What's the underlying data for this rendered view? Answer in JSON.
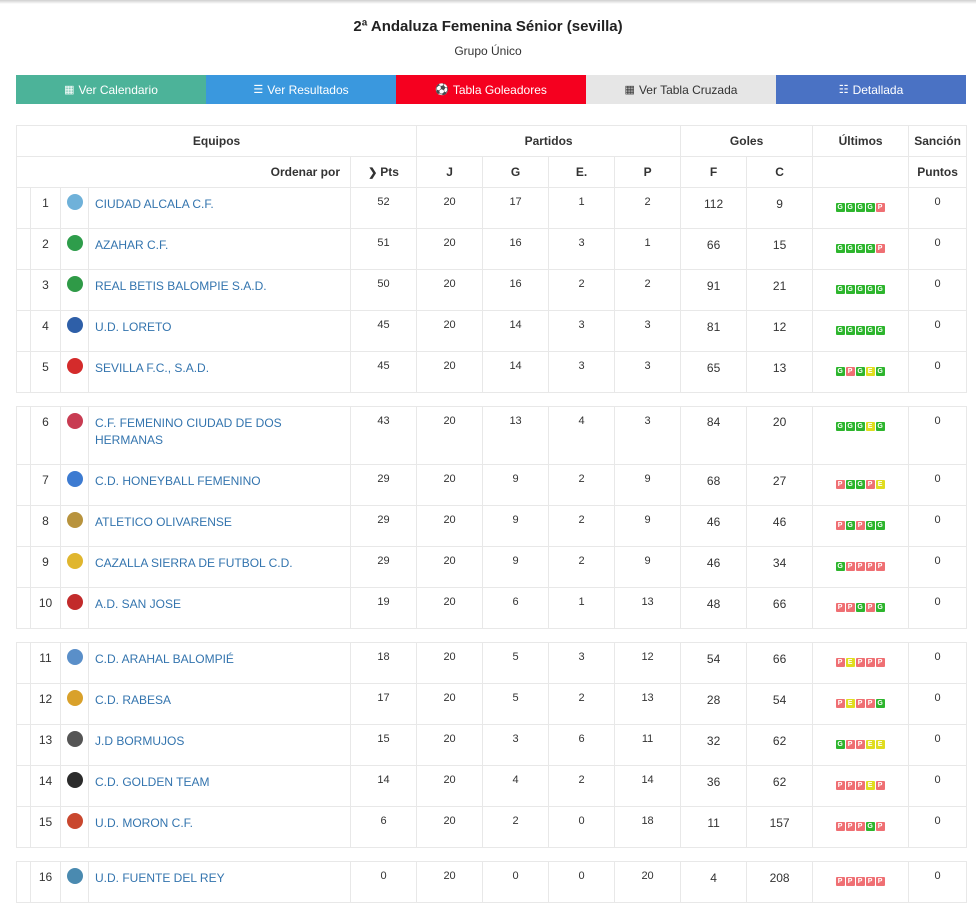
{
  "header": {
    "title": "2ª Andaluza Femenina Sénior (sevilla)",
    "subtitle": "Grupo Único"
  },
  "buttons": [
    {
      "label": "Ver Calendario",
      "icon": "calendar-icon",
      "color": "#4cb399"
    },
    {
      "label": "Ver Resultados",
      "icon": "list-icon",
      "color": "#3a98de"
    },
    {
      "label": "Tabla Goleadores",
      "icon": "soccer-ball-icon",
      "color": "#f5001f"
    },
    {
      "label": "Ver Tabla Cruzada",
      "icon": "grid-icon",
      "color": "#e6e6e6"
    },
    {
      "label": "Detallada",
      "icon": "detail-list-icon",
      "color": "#4a72c4"
    }
  ],
  "table": {
    "groups": {
      "equipos": "Equipos",
      "partidos": "Partidos",
      "goles": "Goles",
      "ultimos": "Últimos",
      "sancion": "Sanción"
    },
    "cols": {
      "ordenar": "Ordenar por",
      "pts": "Pts",
      "j": "J",
      "g": "G",
      "e": "E.",
      "p": "P",
      "f": "F",
      "c": "C",
      "puntos": "Puntos"
    },
    "rows": [
      {
        "pos": "1",
        "team": "CIUDAD ALCALA C.F.",
        "pts": "52",
        "j": "20",
        "g": "17",
        "e": "1",
        "p": "2",
        "f": "112",
        "c": "9",
        "last": [
          "G",
          "G",
          "G",
          "G",
          "P"
        ],
        "sancion": "0",
        "logo": "#6fb1d9"
      },
      {
        "pos": "2",
        "team": "AZAHAR C.F.",
        "pts": "51",
        "j": "20",
        "g": "16",
        "e": "3",
        "p": "1",
        "f": "66",
        "c": "15",
        "last": [
          "G",
          "G",
          "G",
          "G",
          "P"
        ],
        "sancion": "0",
        "logo": "#2e9d4b"
      },
      {
        "pos": "3",
        "team": "REAL BETIS BALOMPIE S.A.D.",
        "pts": "50",
        "j": "20",
        "g": "16",
        "e": "2",
        "p": "2",
        "f": "91",
        "c": "21",
        "last": [
          "G",
          "G",
          "G",
          "G",
          "G"
        ],
        "sancion": "0",
        "logo": "#2f9a47"
      },
      {
        "pos": "4",
        "team": "U.D. LORETO",
        "pts": "45",
        "j": "20",
        "g": "14",
        "e": "3",
        "p": "3",
        "f": "81",
        "c": "12",
        "last": [
          "G",
          "G",
          "G",
          "G",
          "G"
        ],
        "sancion": "0",
        "logo": "#2e5fa8"
      },
      {
        "pos": "5",
        "team": "SEVILLA F.C., S.A.D.",
        "pts": "45",
        "j": "20",
        "g": "14",
        "e": "3",
        "p": "3",
        "f": "65",
        "c": "13",
        "last": [
          "G",
          "P",
          "G",
          "E",
          "G"
        ],
        "sancion": "0",
        "logo": "#d42b2b"
      },
      {
        "pos": "6",
        "team": "C.F. FEMENINO CIUDAD DE DOS HERMANAS",
        "pts": "43",
        "j": "20",
        "g": "13",
        "e": "4",
        "p": "3",
        "f": "84",
        "c": "20",
        "last": [
          "G",
          "G",
          "G",
          "E",
          "G"
        ],
        "sancion": "0",
        "logo": "#c83c52"
      },
      {
        "pos": "7",
        "team": "C.D. HONEYBALL FEMENINO",
        "pts": "29",
        "j": "20",
        "g": "9",
        "e": "2",
        "p": "9",
        "f": "68",
        "c": "27",
        "last": [
          "P",
          "G",
          "G",
          "P",
          "E"
        ],
        "sancion": "0",
        "logo": "#3d7bd1"
      },
      {
        "pos": "8",
        "team": "ATLETICO OLIVARENSE",
        "pts": "29",
        "j": "20",
        "g": "9",
        "e": "2",
        "p": "9",
        "f": "46",
        "c": "46",
        "last": [
          "P",
          "G",
          "P",
          "G",
          "G"
        ],
        "sancion": "0",
        "logo": "#b8933d"
      },
      {
        "pos": "9",
        "team": "CAZALLA SIERRA DE FUTBOL C.D.",
        "pts": "29",
        "j": "20",
        "g": "9",
        "e": "2",
        "p": "9",
        "f": "46",
        "c": "34",
        "last": [
          "G",
          "P",
          "P",
          "P",
          "P"
        ],
        "sancion": "0",
        "logo": "#e0b62e"
      },
      {
        "pos": "10",
        "team": "A.D. SAN JOSE",
        "pts": "19",
        "j": "20",
        "g": "6",
        "e": "1",
        "p": "13",
        "f": "48",
        "c": "66",
        "last": [
          "P",
          "P",
          "G",
          "P",
          "G"
        ],
        "sancion": "0",
        "logo": "#c22b2b"
      },
      {
        "pos": "11",
        "team": "C.D. ARAHAL BALOMPIÉ",
        "pts": "18",
        "j": "20",
        "g": "5",
        "e": "3",
        "p": "12",
        "f": "54",
        "c": "66",
        "last": [
          "P",
          "E",
          "P",
          "P",
          "P"
        ],
        "sancion": "0",
        "logo": "#5a8fc9"
      },
      {
        "pos": "12",
        "team": "C.D. RABESA",
        "pts": "17",
        "j": "20",
        "g": "5",
        "e": "2",
        "p": "13",
        "f": "28",
        "c": "54",
        "last": [
          "P",
          "E",
          "P",
          "P",
          "G"
        ],
        "sancion": "0",
        "logo": "#d9a12b"
      },
      {
        "pos": "13",
        "team": "J.D BORMUJOS",
        "pts": "15",
        "j": "20",
        "g": "3",
        "e": "6",
        "p": "11",
        "f": "32",
        "c": "62",
        "last": [
          "G",
          "P",
          "P",
          "E",
          "E"
        ],
        "sancion": "0",
        "logo": "#555555"
      },
      {
        "pos": "14",
        "team": "C.D. GOLDEN TEAM",
        "pts": "14",
        "j": "20",
        "g": "4",
        "e": "2",
        "p": "14",
        "f": "36",
        "c": "62",
        "last": [
          "P",
          "P",
          "P",
          "E",
          "P"
        ],
        "sancion": "0",
        "logo": "#2b2b2b"
      },
      {
        "pos": "15",
        "team": "U.D. MORON C.F.",
        "pts": "6",
        "j": "20",
        "g": "2",
        "e": "0",
        "p": "18",
        "f": "11",
        "c": "157",
        "last": [
          "P",
          "P",
          "P",
          "G",
          "P"
        ],
        "sancion": "0",
        "logo": "#c9472e"
      },
      {
        "pos": "16",
        "team": "U.D. FUENTE DEL REY",
        "pts": "0",
        "j": "20",
        "g": "0",
        "e": "0",
        "p": "20",
        "f": "4",
        "c": "208",
        "last": [
          "P",
          "P",
          "P",
          "P",
          "P"
        ],
        "sancion": "0",
        "logo": "#4a8ab0"
      }
    ],
    "separators_after": [
      "5",
      "10",
      "15"
    ]
  }
}
